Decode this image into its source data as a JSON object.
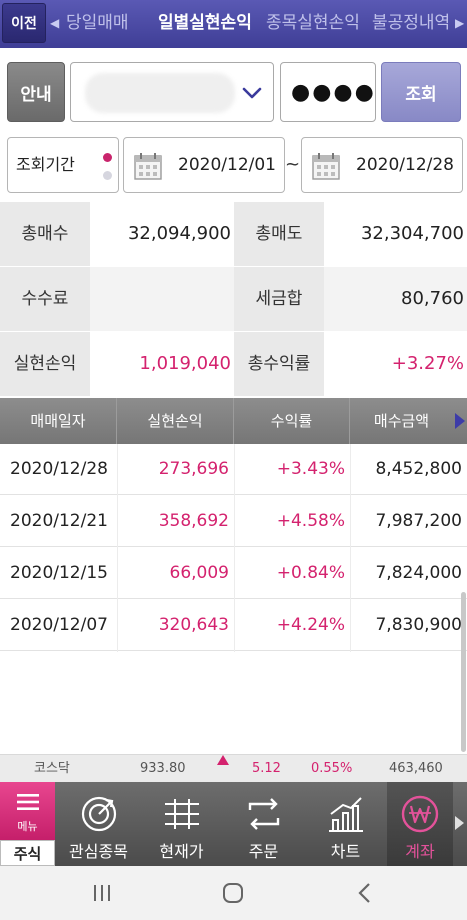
{
  "topbar": {
    "back_label": "이전",
    "tabs": [
      {
        "label": "당일매매",
        "active": false
      },
      {
        "label": "일별실현손익",
        "active": true
      },
      {
        "label": "종목실현손익",
        "active": false
      },
      {
        "label": "불공정내역",
        "active": false
      }
    ]
  },
  "search": {
    "guide_label": "안내",
    "password_value": "●●●●",
    "query_label": "조회"
  },
  "period": {
    "label": "조회기간",
    "from": "2020/12/01",
    "separator": "~",
    "to": "2020/12/28"
  },
  "summary": {
    "rows": [
      {
        "l1": "총매수",
        "v1": "32,094,900",
        "l2": "총매도",
        "v2": "32,304,700"
      },
      {
        "l1": "수수료",
        "v1": "",
        "l2": "세금합",
        "v2": "80,760"
      },
      {
        "l1": "실현손익",
        "v1": "1,019,040",
        "l2": "총수익률",
        "v2": "+3.27%"
      }
    ]
  },
  "table": {
    "headers": [
      "매매일자",
      "실현손익",
      "수익률",
      "매수금액"
    ],
    "rows": [
      {
        "date": "2020/12/28",
        "profit": "273,696",
        "rate": "+3.43%",
        "buy": "8,452,800"
      },
      {
        "date": "2020/12/21",
        "profit": "358,692",
        "rate": "+4.58%",
        "buy": "7,987,200"
      },
      {
        "date": "2020/12/15",
        "profit": "66,009",
        "rate": "+0.84%",
        "buy": "7,824,000"
      },
      {
        "date": "2020/12/07",
        "profit": "320,643",
        "rate": "+4.24%",
        "buy": "7,830,900"
      }
    ]
  },
  "ticker": {
    "index_name": "코스닥",
    "value": "933.80",
    "change": "5.12",
    "change_pct": "0.55%",
    "volume": "463,460"
  },
  "bottom_nav": {
    "menu_label": "메뉴",
    "stock_label": "주식",
    "items": [
      {
        "label": "관심종목",
        "icon": "favorites-icon"
      },
      {
        "label": "현재가",
        "icon": "current-price-icon"
      },
      {
        "label": "주문",
        "icon": "order-icon"
      },
      {
        "label": "차트",
        "icon": "chart-icon"
      },
      {
        "label": "계좌",
        "icon": "account-won-icon",
        "active": true
      }
    ]
  },
  "colors": {
    "accent": "#4a49a6",
    "profit": "#d4226e",
    "menu": "#d8307b"
  }
}
